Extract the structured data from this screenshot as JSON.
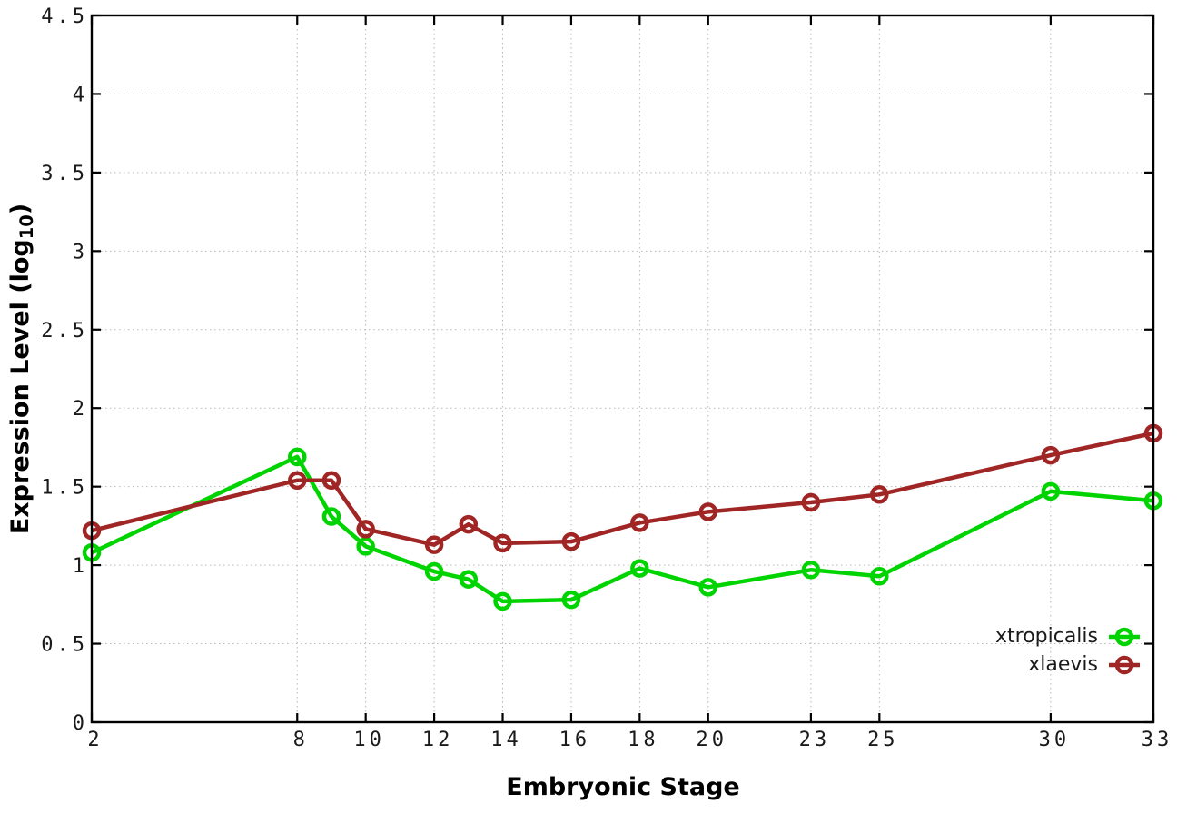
{
  "figure": {
    "background": "#ffffff",
    "xlabel": "Embryonic Stage",
    "ylabel": {
      "main": "Expression Level (log",
      "sub": "10",
      "end": ")"
    }
  },
  "chart_data": {
    "type": "line",
    "title": "",
    "xlabel": "Embryonic Stage",
    "ylabel": "Expression Level (log10)",
    "x": [
      2,
      8,
      9,
      10,
      12,
      13,
      14,
      16,
      18,
      20,
      23,
      25,
      30,
      33
    ],
    "series": [
      {
        "name": "xtropicalis",
        "color": "#00d400",
        "values": [
          1.08,
          1.69,
          1.31,
          1.12,
          0.96,
          0.91,
          0.77,
          0.78,
          0.98,
          0.86,
          0.97,
          0.93,
          1.47,
          1.41
        ]
      },
      {
        "name": "xlaevis",
        "color": "#a02525",
        "values": [
          1.22,
          1.54,
          1.54,
          1.23,
          1.13,
          1.26,
          1.14,
          1.15,
          1.27,
          1.34,
          1.4,
          1.45,
          1.7,
          1.84
        ]
      }
    ],
    "xlim": [
      2,
      33
    ],
    "ylim": [
      0,
      4.5
    ],
    "xticks": {
      "values": [
        2,
        8,
        10,
        12,
        14,
        16,
        18,
        20,
        23,
        25,
        30,
        33
      ],
      "labels": [
        "2",
        "8",
        "10",
        "12",
        "14",
        "16",
        "18",
        "20",
        "23",
        "25",
        "30",
        "33"
      ]
    },
    "yticks": {
      "values": [
        0,
        0.5,
        1,
        1.5,
        2,
        2.5,
        3,
        3.5,
        4,
        4.5
      ],
      "labels": [
        "0",
        "0.5",
        "1",
        "1.5",
        "2",
        "2.5",
        "3",
        "3.5",
        "4",
        "4.5"
      ]
    },
    "grid": true,
    "grid_style": "dotted",
    "legend_position": "bottom-right-inside",
    "marker": "open-circle",
    "line_width": 4.5,
    "plot_border_color": "#000000",
    "grid_color": "#b8b8b8"
  }
}
